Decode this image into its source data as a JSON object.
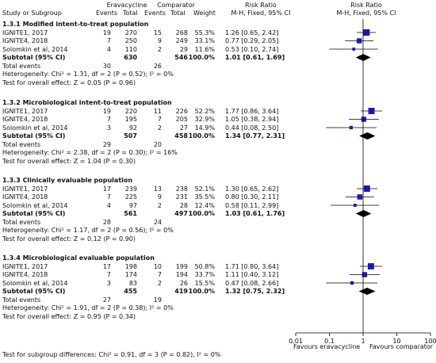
{
  "header": {
    "study": "Study or Subgroup",
    "group1": "Eravacycline",
    "group2": "Comparator",
    "events": "Events",
    "total": "Total",
    "weight": "Weight",
    "rr_title": "Risk Ratio",
    "rr_sub": "M-H, Fixed, 95% CI",
    "plot_title": "Risk Ratio",
    "plot_sub": "M-H, Fixed, 95% CI"
  },
  "footer": {
    "test_subgroup": "Test for subgroup differences: Chi² = 0.91, df = 3 (P = 0.82), I² = 0%",
    "favours_left": "Favours eravacycline",
    "favours_right": "Favours comparator"
  },
  "chart_data": {
    "type": "forest",
    "x_scale": "log",
    "x_ticks": [
      "0.01",
      "0.1",
      "1",
      "10",
      "100"
    ],
    "x_range": [
      0.01,
      100
    ],
    "square_color": "#1a1aaa",
    "diamond_color": "#000000",
    "groups": [
      {
        "title": "1.3.1 Modified intent-to-treat population",
        "studies": [
          {
            "name": "IGNITE1, 2017",
            "e1": "19",
            "t1": "270",
            "e2": "15",
            "t2": "268",
            "weight": "55.3%",
            "ci_text": "1.26 [0.65, 2.42]",
            "rr": 1.26,
            "lo": 0.65,
            "hi": 2.42,
            "w": 55.3
          },
          {
            "name": "IGNITE4, 2018",
            "e1": "7",
            "t1": "250",
            "e2": "9",
            "t2": "249",
            "weight": "33.1%",
            "ci_text": "0.77 [0.29, 2.05]",
            "rr": 0.77,
            "lo": 0.29,
            "hi": 2.05,
            "w": 33.1
          },
          {
            "name": "Solomkin et al, 2014",
            "e1": "4",
            "t1": "110",
            "e2": "2",
            "t2": "29",
            "weight": "11.6%",
            "ci_text": "0.53 [0.10, 2.74]",
            "rr": 0.53,
            "lo": 0.1,
            "hi": 2.74,
            "w": 11.6
          }
        ],
        "subtotal": {
          "label": "Subtotal (95% CI)",
          "t1": "630",
          "t2": "546",
          "weight": "100.0%",
          "ci_text": "1.01 [0.61, 1.69]",
          "rr": 1.01,
          "lo": 0.61,
          "hi": 1.69
        },
        "total_events": {
          "label": "Total events",
          "e1": "30",
          "e2": "26"
        },
        "heterogeneity": "Heterogeneity: Chi² = 1.31, df = 2 (P = 0.52); I² = 0%",
        "overall": "Test for overall effect: Z = 0.05 (P = 0.96)"
      },
      {
        "title": "1.3.2 Microbiological intent-to-treat population",
        "studies": [
          {
            "name": "IGNITE1, 2017",
            "e1": "19",
            "t1": "220",
            "e2": "11",
            "t2": "226",
            "weight": "52.2%",
            "ci_text": "1.77 [0.86, 3.64]",
            "rr": 1.77,
            "lo": 0.86,
            "hi": 3.64,
            "w": 52.2
          },
          {
            "name": "IGNITE4, 2018",
            "e1": "7",
            "t1": "195",
            "e2": "7",
            "t2": "205",
            "weight": "32.9%",
            "ci_text": "1.05 [0.38, 2.94]",
            "rr": 1.05,
            "lo": 0.38,
            "hi": 2.94,
            "w": 32.9
          },
          {
            "name": "Solomkin et al, 2014",
            "e1": "3",
            "t1": "92",
            "e2": "2",
            "t2": "27",
            "weight": "14.9%",
            "ci_text": "0.44 [0.08, 2.50]",
            "rr": 0.44,
            "lo": 0.08,
            "hi": 2.5,
            "w": 14.9
          }
        ],
        "subtotal": {
          "label": "Subtotal (95% CI)",
          "t1": "507",
          "t2": "458",
          "weight": "100.0%",
          "ci_text": "1.34 [0.77, 2.31]",
          "rr": 1.34,
          "lo": 0.77,
          "hi": 2.31
        },
        "total_events": {
          "label": "Total events",
          "e1": "29",
          "e2": "20"
        },
        "heterogeneity": "Heterogeneity: Chi² = 2.38, df = 2 (P = 0.30); I² = 16%",
        "overall": "Test for overall effect: Z = 1.04 (P = 0.30)"
      },
      {
        "title": "1.3.3 Clinically evaluable population",
        "studies": [
          {
            "name": "IGNITE1, 2017",
            "e1": "17",
            "t1": "239",
            "e2": "13",
            "t2": "238",
            "weight": "52.1%",
            "ci_text": "1.30 [0.65, 2.62]",
            "rr": 1.3,
            "lo": 0.65,
            "hi": 2.62,
            "w": 52.1
          },
          {
            "name": "IGNITE4, 2018",
            "e1": "7",
            "t1": "225",
            "e2": "9",
            "t2": "231",
            "weight": "35.5%",
            "ci_text": "0.80 [0.30, 2.11]",
            "rr": 0.8,
            "lo": 0.3,
            "hi": 2.11,
            "w": 35.5
          },
          {
            "name": "Solomkin et al, 2014",
            "e1": "4",
            "t1": "97",
            "e2": "2",
            "t2": "28",
            "weight": "12.4%",
            "ci_text": "0.58 [0.11, 2.99]",
            "rr": 0.58,
            "lo": 0.11,
            "hi": 2.99,
            "w": 12.4
          }
        ],
        "subtotal": {
          "label": "Subtotal (95% CI)",
          "t1": "561",
          "t2": "497",
          "weight": "100.0%",
          "ci_text": "1.03 [0.61, 1.76]",
          "rr": 1.03,
          "lo": 0.61,
          "hi": 1.76
        },
        "total_events": {
          "label": "Total events",
          "e1": "28",
          "e2": "24"
        },
        "heterogeneity": "Heterogeneity: Chi² = 1.17, df = 2 (P = 0.56); I² = 0%",
        "overall": "Test for overall effect: Z = 0.12 (P = 0.90)"
      },
      {
        "title": "1.3.4 Microbiological evaluable population",
        "studies": [
          {
            "name": "IGNITE1, 2017",
            "e1": "17",
            "t1": "198",
            "e2": "10",
            "t2": "199",
            "weight": "50.8%",
            "ci_text": "1.71 [0.80, 3.64]",
            "rr": 1.71,
            "lo": 0.8,
            "hi": 3.64,
            "w": 50.8
          },
          {
            "name": "IGNITE4, 2018",
            "e1": "7",
            "t1": "174",
            "e2": "7",
            "t2": "194",
            "weight": "33.7%",
            "ci_text": "1.11 [0.40, 3.12]",
            "rr": 1.11,
            "lo": 0.4,
            "hi": 3.12,
            "w": 33.7
          },
          {
            "name": "Solomkin et al, 2014",
            "e1": "3",
            "t1": "83",
            "e2": "2",
            "t2": "26",
            "weight": "15.5%",
            "ci_text": "0.47 [0.08, 2.66]",
            "rr": 0.47,
            "lo": 0.08,
            "hi": 2.66,
            "w": 15.5
          }
        ],
        "subtotal": {
          "label": "Subtotal (95% CI)",
          "t1": "455",
          "t2": "419",
          "weight": "100.0%",
          "ci_text": "1.32 [0.75, 2.32]",
          "rr": 1.32,
          "lo": 0.75,
          "hi": 2.32
        },
        "total_events": {
          "label": "Total events",
          "e1": "27",
          "e2": "19"
        },
        "heterogeneity": "Heterogeneity: Chi² = 1.91, df = 2 (P = 0.38); I² = 0%",
        "overall": "Test for overall effect: Z = 0.95 (P = 0.34)"
      }
    ]
  }
}
